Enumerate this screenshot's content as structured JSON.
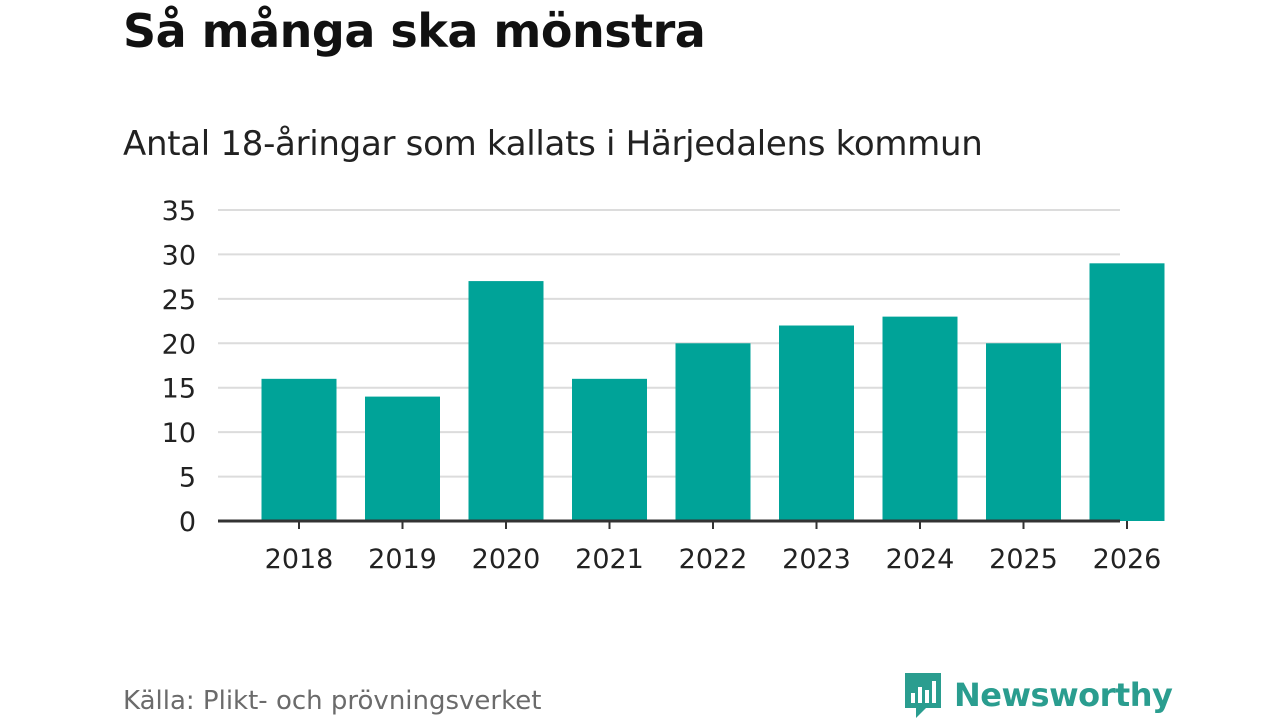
{
  "title": "Så många ska mönstra",
  "subtitle": "Antal 18-åringar som kallats i Härjedalens kommun",
  "source": "Källa: Plikt- och prövningsverket",
  "brand": {
    "name": "Newsworthy",
    "color": "#2a9d8f",
    "icon": "newsworthy-logo-icon"
  },
  "chart_data": {
    "type": "bar",
    "categories": [
      "2018",
      "2019",
      "2020",
      "2021",
      "2022",
      "2023",
      "2024",
      "2025",
      "2026"
    ],
    "values": [
      16,
      14,
      27,
      16,
      20,
      22,
      23,
      20,
      29
    ],
    "title": "Antal 18-åringar som kallats i Härjedalens kommun",
    "xlabel": "",
    "ylabel": "",
    "ylim": [
      0,
      35
    ],
    "yticks": [
      0,
      5,
      10,
      15,
      20,
      25,
      30,
      35
    ],
    "grid": true,
    "bar_color": "#00a398"
  }
}
